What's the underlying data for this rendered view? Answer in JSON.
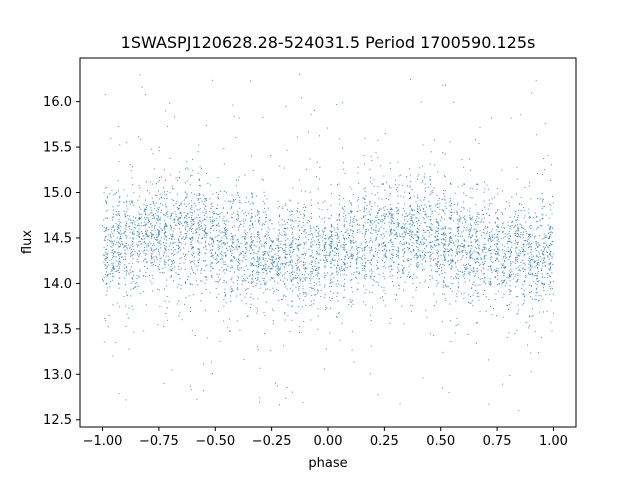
{
  "chart_data": {
    "type": "scatter",
    "title": "1SWASPJ120628.28-524031.5 Period 1700590.125s",
    "xlabel": "phase",
    "ylabel": "flux",
    "xlim": [
      -1.1,
      1.1
    ],
    "ylim": [
      12.42,
      16.48
    ],
    "x_ticks": [
      -1.0,
      -0.75,
      -0.5,
      -0.25,
      0.0,
      0.25,
      0.5,
      0.75,
      1.0
    ],
    "x_tick_labels": [
      "−1.00",
      "−0.75",
      "−0.50",
      "−0.25",
      "0.00",
      "0.25",
      "0.50",
      "0.75",
      "1.00"
    ],
    "y_ticks": [
      12.5,
      13.0,
      13.5,
      14.0,
      14.5,
      15.0,
      15.5,
      16.0
    ],
    "y_tick_labels": [
      "12.5",
      "13.0",
      "13.5",
      "14.0",
      "14.5",
      "15.0",
      "15.5",
      "16.0"
    ],
    "grid": false,
    "legend": "none",
    "marker_color": "#1f77b4",
    "series": [
      {
        "phase_range": [
          -1.0,
          1.0
        ],
        "flux_median_by_phase": {
          "x": [
            -1.0,
            -0.9,
            -0.8,
            -0.7,
            -0.6,
            -0.5,
            -0.4,
            -0.3,
            -0.2,
            -0.1,
            0.0,
            0.1,
            0.2,
            0.3,
            0.4,
            0.5,
            0.6,
            0.7,
            0.8,
            0.9,
            1.0
          ],
          "y": [
            14.4,
            14.45,
            14.5,
            14.55,
            14.55,
            14.5,
            14.4,
            14.35,
            14.3,
            14.3,
            14.35,
            14.45,
            14.5,
            14.55,
            14.55,
            14.5,
            14.4,
            14.35,
            14.3,
            14.3,
            14.35
          ]
        },
        "core_flux_range": [
          13.8,
          15.1
        ],
        "outlier_flux_range": [
          12.55,
          16.3
        ]
      }
    ]
  }
}
